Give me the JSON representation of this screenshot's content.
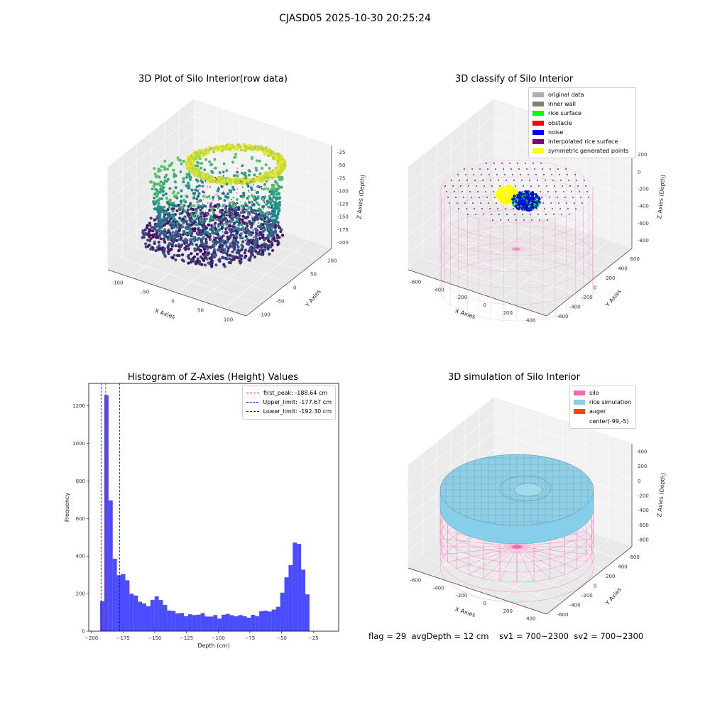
{
  "figure_title": "CJASD05 2025-10-30 20:25:24",
  "chart_data": [
    {
      "type": "scatter3d",
      "title": "3D Plot of Silo Interior(row data)",
      "xlabel": "X Axies",
      "ylabel": "Y Axies",
      "zlabel": "Z Axies (Depth)",
      "x_ticks": [
        "-100",
        "-50",
        "0",
        "50",
        "100"
      ],
      "y_ticks": [
        "-100",
        "-50",
        "0",
        "50",
        "100"
      ],
      "z_ticks": [
        "-25",
        "-50",
        "-75",
        "-100",
        "-125",
        "-150",
        "-175",
        "-200"
      ],
      "xlim": [
        -130,
        120
      ],
      "ylim": [
        -130,
        120
      ],
      "zlim": [
        -200,
        -10
      ],
      "colormap": "viridis",
      "grid": true
    },
    {
      "type": "scatter3d",
      "title": "3D classify of Silo Interior",
      "xlabel": "X Axies",
      "ylabel": "Y Axies",
      "zlabel": "Z Axies (Depth)",
      "x_ticks": [
        "-600",
        "-400",
        "-200",
        "0",
        "200",
        "400"
      ],
      "y_ticks": [
        "-600",
        "-400",
        "-200",
        "0",
        "200",
        "400",
        "600"
      ],
      "z_ticks": [
        "200",
        "0",
        "-200",
        "-400",
        "-600",
        "-800"
      ],
      "legend_position": "top-right",
      "legend": [
        {
          "label": "original data",
          "color": "#b0b0b0"
        },
        {
          "label": "inner wall",
          "color": "#808080"
        },
        {
          "label": "rice surface",
          "color": "#00ff00"
        },
        {
          "label": "obstacle",
          "color": "#ff0000"
        },
        {
          "label": "noise",
          "color": "#0000ff"
        },
        {
          "label": "interpolated rice surface",
          "color": "#800080"
        },
        {
          "label": "symmetric generated points",
          "color": "#ffff00"
        }
      ],
      "grid": true
    },
    {
      "type": "bar",
      "title": "Histogram of Z-Axies (Height) Values",
      "xlabel": "Depth (cm)",
      "ylabel": "Frequency",
      "xlim": [
        -202,
        -5
      ],
      "ylim": [
        0,
        1320
      ],
      "x_ticks": [
        -200,
        -175,
        -150,
        -125,
        -100,
        -75,
        -50,
        -25
      ],
      "y_ticks": [
        0,
        200,
        400,
        600,
        800,
        1000,
        1200
      ],
      "bar_color": "#0000ff",
      "bin_start": -193,
      "bin_width": 3.3,
      "values": [
        160,
        1258,
        697,
        386,
        298,
        305,
        271,
        200,
        190,
        157,
        148,
        133,
        167,
        186,
        166,
        140,
        110,
        108,
        95,
        97,
        80,
        90,
        86,
        88,
        96,
        78,
        78,
        86,
        67,
        88,
        92,
        85,
        79,
        86,
        80,
        72,
        87,
        80,
        107,
        109,
        105,
        115,
        130,
        205,
        287,
        352,
        472,
        465,
        328,
        196
      ],
      "vlines": [
        {
          "label": "first_peak: -188.64 cm",
          "x": -188.64,
          "color": "#ff0000"
        },
        {
          "label": "Upper_limit: -177.67 cm",
          "x": -177.67,
          "color": "#0000ff"
        },
        {
          "label": "Lower_limit: -192.30 cm",
          "x": -192.3,
          "color": "#0000ff"
        }
      ],
      "legend_position": "top-right"
    },
    {
      "type": "surface3d",
      "title": "3D simulation of Silo Interior",
      "xlabel": "X Axies",
      "ylabel": "Y Axies",
      "zlabel": "Z Axies (Depth)",
      "x_ticks": [
        "-600",
        "-400",
        "-200",
        "0",
        "200",
        "400"
      ],
      "y_ticks": [
        "-600",
        "-400",
        "-200",
        "0",
        "200",
        "400",
        "600"
      ],
      "z_ticks": [
        "400",
        "200",
        "0",
        "-200",
        "-400",
        "-600",
        "-800"
      ],
      "legend_position": "top-right",
      "legend": [
        {
          "label": "silo",
          "color": "#ff69b4"
        },
        {
          "label": "rice simulation",
          "color": "#87ceeb"
        },
        {
          "label": "auger",
          "color": "#ff4500"
        },
        {
          "label": "center(-99,-5)",
          "color": "#ffffff"
        }
      ],
      "grid": true
    }
  ],
  "footer": {
    "flag": "flag = 29",
    "avg_depth": "avgDepth = 12 cm",
    "sv1": "sv1 = 700~2300",
    "sv2": "sv2 = 700~2300"
  }
}
